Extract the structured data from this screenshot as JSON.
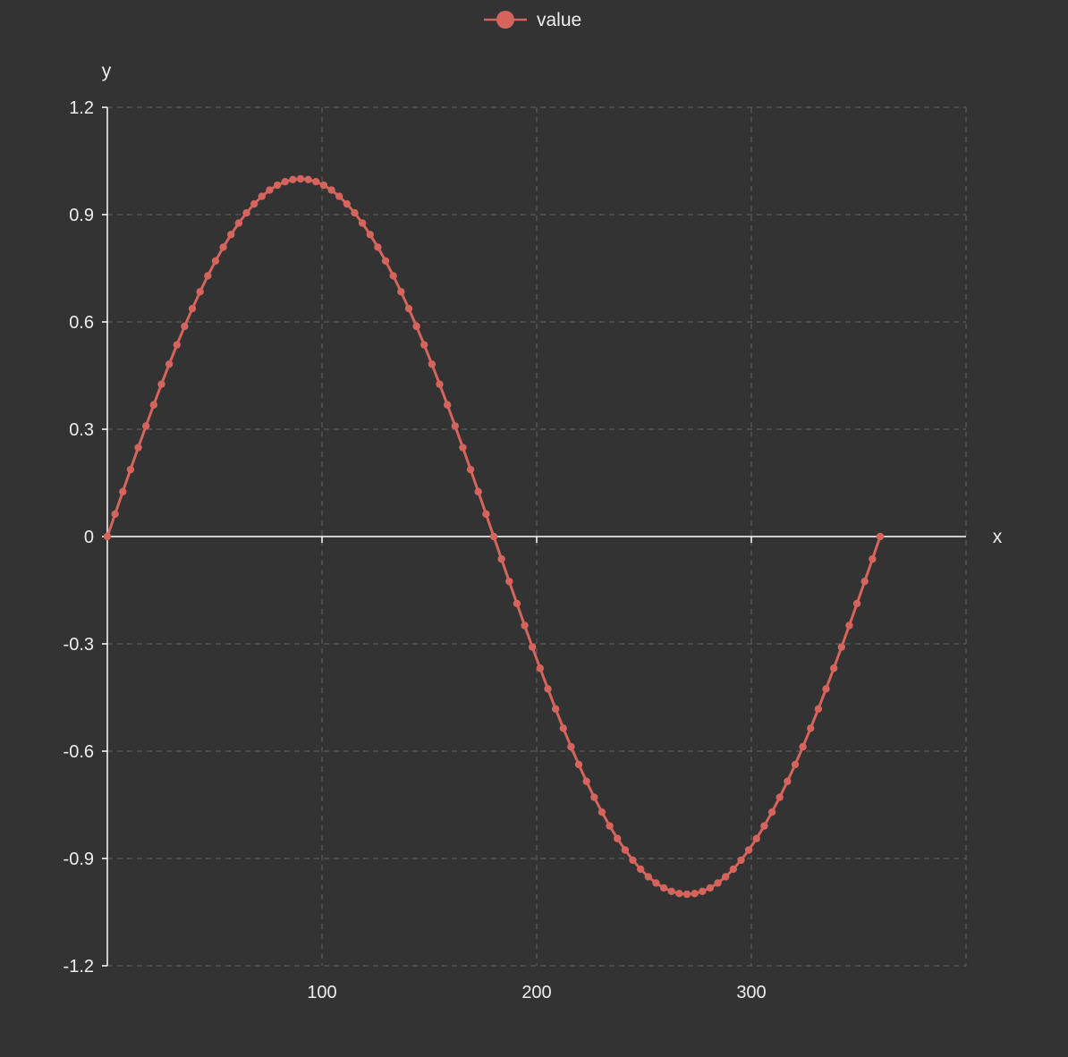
{
  "chart_data": {
    "type": "line",
    "title": "",
    "xlabel": "x",
    "ylabel": "y",
    "xlim": [
      0,
      400
    ],
    "ylim": [
      -1.2,
      1.2
    ],
    "x_ticks": [
      {
        "value": 100,
        "label": "100"
      },
      {
        "value": 200,
        "label": "200"
      },
      {
        "value": 300,
        "label": "300"
      }
    ],
    "y_ticks": [
      {
        "value": 1.2,
        "label": "1.2"
      },
      {
        "value": 0.9,
        "label": "0.9"
      },
      {
        "value": 0.6,
        "label": "0.6"
      },
      {
        "value": 0.3,
        "label": "0.3"
      },
      {
        "value": 0,
        "label": "0"
      },
      {
        "value": -0.3,
        "label": "-0.3"
      },
      {
        "value": -0.6,
        "label": "-0.6"
      },
      {
        "value": -0.9,
        "label": "-0.9"
      },
      {
        "value": -1.2,
        "label": "-1.2"
      }
    ],
    "grid": true,
    "legend_position": "top-center",
    "series": [
      {
        "name": "value",
        "color": "#d4645c",
        "x": [
          0,
          3.6,
          7.2,
          10.8,
          14.4,
          18,
          21.6,
          25.2,
          28.8,
          32.4,
          36,
          39.6,
          43.2,
          46.8,
          50.4,
          54,
          57.6,
          61.2,
          64.8,
          68.4,
          72,
          75.6,
          79.2,
          82.8,
          86.4,
          90,
          93.6,
          97.2,
          100.8,
          104.4,
          108,
          111.6,
          115.2,
          118.8,
          122.4,
          126,
          129.6,
          133.2,
          136.8,
          140.4,
          144,
          147.6,
          151.2,
          154.8,
          158.4,
          162,
          165.6,
          169.2,
          172.8,
          176.4,
          180,
          183.6,
          187.2,
          190.8,
          194.4,
          198,
          201.6,
          205.2,
          208.8,
          212.4,
          216,
          219.6,
          223.2,
          226.8,
          230.4,
          234,
          237.6,
          241.2,
          244.8,
          248.4,
          252,
          255.6,
          259.2,
          262.8,
          266.4,
          270,
          273.6,
          277.2,
          280.8,
          284.4,
          288,
          291.6,
          295.2,
          298.8,
          302.4,
          306,
          309.6,
          313.2,
          316.8,
          320.4,
          324,
          327.6,
          331.2,
          334.8,
          338.4,
          342,
          345.6,
          349.2,
          352.8,
          356.4,
          360
        ],
        "y": [
          0,
          0.0628,
          0.1253,
          0.1874,
          0.2487,
          0.309,
          0.3681,
          0.4258,
          0.4818,
          0.5358,
          0.5878,
          0.6374,
          0.6845,
          0.729,
          0.7705,
          0.809,
          0.8443,
          0.8763,
          0.9048,
          0.9298,
          0.9511,
          0.9686,
          0.9823,
          0.9921,
          0.998,
          1,
          0.998,
          0.9921,
          0.9823,
          0.9686,
          0.9511,
          0.9298,
          0.9048,
          0.8763,
          0.8443,
          0.809,
          0.7705,
          0.729,
          0.6845,
          0.6374,
          0.5878,
          0.5358,
          0.4818,
          0.4258,
          0.3681,
          0.309,
          0.2487,
          0.1874,
          0.1253,
          0.0628,
          0,
          -0.0628,
          -0.1253,
          -0.1874,
          -0.2487,
          -0.309,
          -0.3681,
          -0.4258,
          -0.4818,
          -0.5358,
          -0.5878,
          -0.6374,
          -0.6845,
          -0.729,
          -0.7705,
          -0.809,
          -0.8443,
          -0.8763,
          -0.9048,
          -0.9298,
          -0.9511,
          -0.9686,
          -0.9823,
          -0.9921,
          -0.998,
          -1,
          -0.998,
          -0.9921,
          -0.9823,
          -0.9686,
          -0.9511,
          -0.9298,
          -0.9048,
          -0.8763,
          -0.8443,
          -0.809,
          -0.7705,
          -0.729,
          -0.6845,
          -0.6374,
          -0.5878,
          -0.5358,
          -0.4818,
          -0.4258,
          -0.3681,
          -0.309,
          -0.2487,
          -0.1874,
          -0.1253,
          -0.0628,
          0
        ]
      }
    ]
  }
}
